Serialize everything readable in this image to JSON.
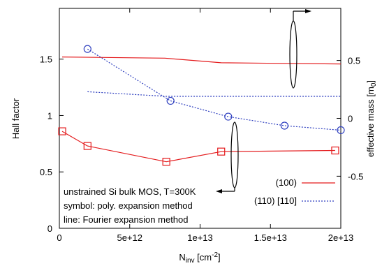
{
  "chart_data": {
    "type": "line",
    "title": "",
    "xlabel": {
      "main": "N",
      "sub": "inv",
      "unit": " [cm",
      "unit_sup": "-2",
      "unit_end": "]"
    },
    "ylabel_left": "Hall factor",
    "ylabel_right": {
      "main": "effective mass [m",
      "sub": "0",
      "end": "]"
    },
    "xlim": [
      0,
      20000000000000.0
    ],
    "ylim_left": [
      0,
      1.95
    ],
    "ylim_right": [
      -0.95,
      0.95
    ],
    "x_ticks": [
      {
        "value": 0,
        "label": "0"
      },
      {
        "value": 5000000000000.0,
        "label": "5e+12"
      },
      {
        "value": 10000000000000.0,
        "label": "1e+13"
      },
      {
        "value": 15000000000000.0,
        "label": "1.5e+13"
      },
      {
        "value": 20000000000000.0,
        "label": "2e+13"
      }
    ],
    "y_ticks_left": [
      {
        "value": 0,
        "label": "0"
      },
      {
        "value": 0.5,
        "label": "0.5"
      },
      {
        "value": 1,
        "label": "1"
      },
      {
        "value": 1.5,
        "label": "1.5"
      }
    ],
    "y_ticks_right": [
      {
        "value": -0.5,
        "label": "-0.5"
      },
      {
        "value": 0,
        "label": "0"
      },
      {
        "value": 0.5,
        "label": "0.5"
      }
    ],
    "series": [
      {
        "name": "(100)",
        "kind": "line",
        "axis": "right",
        "color": "#e41a1c",
        "dash": "",
        "points": [
          [
            200000000000.0,
            0.53
          ],
          [
            7500000000000.0,
            0.52
          ],
          [
            11500000000000.0,
            0.48
          ],
          [
            20000000000000.0,
            0.47
          ]
        ]
      },
      {
        "name": "(110) [110]",
        "kind": "line",
        "axis": "right",
        "color": "#2e3fbf",
        "dash": "2,2",
        "points": [
          [
            2000000000000.0,
            0.23
          ],
          [
            7600000000000.0,
            0.19
          ],
          [
            20000000000000.0,
            0.19
          ]
        ]
      },
      {
        "name": "(100)",
        "kind": "symbol",
        "marker": "square",
        "axis": "left",
        "color": "#e41a1c",
        "dash": "",
        "points": [
          [
            200000000000.0,
            0.86
          ],
          [
            2000000000000.0,
            0.73
          ],
          [
            7600000000000.0,
            0.59
          ],
          [
            11500000000000.0,
            0.68
          ],
          [
            19600000000000.0,
            0.69
          ]
        ]
      },
      {
        "name": "(110) [110]",
        "kind": "symbol",
        "marker": "circle",
        "axis": "left",
        "color": "#2e3fbf",
        "dash": "2,2",
        "points": [
          [
            2000000000000.0,
            1.59
          ],
          [
            7900000000000.0,
            1.13
          ],
          [
            12000000000000.0,
            0.99
          ],
          [
            16000000000000.0,
            0.91
          ],
          [
            20000000000000.0,
            0.87
          ]
        ]
      }
    ],
    "legend": {
      "placement": "bottom-right",
      "entries": [
        {
          "label": "(100)",
          "color": "#e41a1c",
          "dash": ""
        },
        {
          "label": "(110) [110]",
          "color": "#2e3fbf",
          "dash": "2,2"
        }
      ]
    },
    "annotations": [
      "unstrained Si bulk MOS, T=300K",
      "symbol: poly. expansion method",
      "line: Fourier expansion method"
    ],
    "grid": false
  }
}
